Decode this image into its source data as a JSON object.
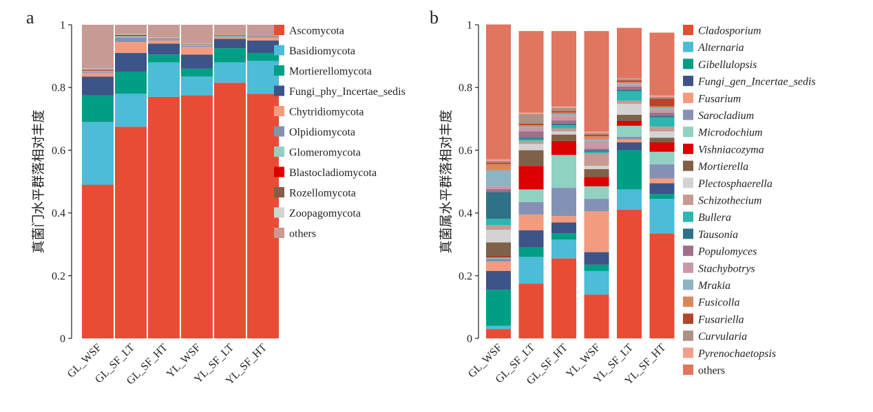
{
  "chart_data": [
    {
      "panel_label": "a",
      "type": "bar",
      "stacked": true,
      "ylabel": "真菌门水平群落相对丰度",
      "xlabel": "",
      "ylim": [
        0,
        1
      ],
      "yticks": [
        "0",
        "0.2",
        "0.4",
        "0.6",
        "0.8",
        "1"
      ],
      "categories": [
        "GL_WSF",
        "GL_SF_LT",
        "GL_SF_HT",
        "YL_WSF",
        "YL_SF_LT",
        "YL_SF_HT"
      ],
      "legend_italic": false,
      "series": [
        {
          "name": "Ascomycota",
          "color": "#e84c35",
          "values": [
            0.49,
            0.675,
            0.77,
            0.775,
            0.815,
            0.78
          ]
        },
        {
          "name": "Basidiomycota",
          "color": "#4cbcd8",
          "values": [
            0.2,
            0.105,
            0.11,
            0.06,
            0.065,
            0.105
          ]
        },
        {
          "name": "Mortierellomycota",
          "color": "#009e84",
          "values": [
            0.085,
            0.07,
            0.025,
            0.025,
            0.045,
            0.025
          ]
        },
        {
          "name": "Fungi_phy_Incertae_sedis",
          "color": "#3c5488",
          "values": [
            0.06,
            0.06,
            0.035,
            0.045,
            0.03,
            0.04
          ]
        },
        {
          "name": "Chytridiomycota",
          "color": "#f39b7f",
          "values": [
            0.012,
            0.035,
            0.01,
            0.025,
            0.005,
            0.008
          ]
        },
        {
          "name": "Olpidiomycota",
          "color": "#8491b4",
          "values": [
            0.004,
            0.015,
            0.004,
            0.004,
            0.003,
            0.003
          ]
        },
        {
          "name": "Glomeromycota",
          "color": "#91d1c2",
          "values": [
            0.003,
            0.004,
            0.002,
            0.003,
            0.002,
            0.002
          ]
        },
        {
          "name": "Blastocladiomycota",
          "color": "#dc0000",
          "values": [
            0.002,
            0.002,
            0.001,
            0.001,
            0.001,
            0.001
          ]
        },
        {
          "name": "Rozellomycota",
          "color": "#7e6148",
          "values": [
            0.002,
            0.002,
            0.001,
            0.001,
            0.001,
            0.001
          ]
        },
        {
          "name": "Zoopagomycota",
          "color": "#d3d3d3",
          "values": [
            0.002,
            0.002,
            0.002,
            0.001,
            0.001,
            0.001
          ]
        },
        {
          "name": "others",
          "color": "#c79a94",
          "values": [
            0.14,
            0.03,
            0.04,
            0.06,
            0.032,
            0.034
          ]
        }
      ]
    },
    {
      "panel_label": "b",
      "type": "bar",
      "stacked": true,
      "ylabel": "真菌属水平群落相对丰度",
      "xlabel": "",
      "ylim": [
        0,
        1
      ],
      "yticks": [
        "0",
        "0.2",
        "0.4",
        "0.6",
        "0.8",
        "1"
      ],
      "categories": [
        "GL_WSF",
        "GL_SF_LT",
        "GL_SF_HT",
        "YL_WSF",
        "YL_SF_LT",
        "YL_SF_HT"
      ],
      "legend_italic": true,
      "series": [
        {
          "name": "Cladosporium",
          "color": "#e84c35",
          "values": [
            0.03,
            0.175,
            0.255,
            0.14,
            0.41,
            0.335
          ]
        },
        {
          "name": "Alternaria",
          "color": "#4cbcd8",
          "values": [
            0.01,
            0.085,
            0.06,
            0.075,
            0.065,
            0.11
          ]
        },
        {
          "name": "Gibellulopsis",
          "color": "#009e84",
          "values": [
            0.115,
            0.03,
            0.02,
            0.02,
            0.125,
            0.015
          ]
        },
        {
          "name": "Fungi_gen_Incertae_sedis",
          "color": "#3c5488",
          "values": [
            0.06,
            0.055,
            0.035,
            0.04,
            0.025,
            0.035
          ]
        },
        {
          "name": "Fusarium",
          "color": "#f39b7f",
          "values": [
            0.03,
            0.05,
            0.02,
            0.13,
            0.01,
            0.015
          ]
        },
        {
          "name": "Sarocladium",
          "color": "#8491b4",
          "values": [
            0.01,
            0.04,
            0.09,
            0.04,
            0.008,
            0.045
          ]
        },
        {
          "name": "Microdochium",
          "color": "#91d1c2",
          "values": [
            0.003,
            0.04,
            0.105,
            0.04,
            0.035,
            0.04
          ]
        },
        {
          "name": "Vishniacozyma",
          "color": "#dc0000",
          "values": [
            0.003,
            0.075,
            0.045,
            0.03,
            0.015,
            0.03
          ]
        },
        {
          "name": "Mortierella",
          "color": "#7e6148",
          "values": [
            0.045,
            0.05,
            0.02,
            0.025,
            0.02,
            0.015
          ]
        },
        {
          "name": "Plectosphaerella",
          "color": "#d3d3d3",
          "values": [
            0.04,
            0.02,
            0.01,
            0.01,
            0.035,
            0.02
          ]
        },
        {
          "name": "Schizothecium",
          "color": "#c79a94",
          "values": [
            0.015,
            0.01,
            0.01,
            0.04,
            0.01,
            0.015
          ]
        },
        {
          "name": "Bullera",
          "color": "#2eb6b0",
          "values": [
            0.02,
            0.005,
            0.01,
            0.005,
            0.03,
            0.03
          ]
        },
        {
          "name": "Tausonia",
          "color": "#2e7287",
          "values": [
            0.085,
            0.005,
            0.005,
            0.005,
            0.005,
            0.005
          ]
        },
        {
          "name": "Populomyces",
          "color": "#a07089",
          "values": [
            0.01,
            0.02,
            0.01,
            0.005,
            0.01,
            0.01
          ]
        },
        {
          "name": "Stachybotrys",
          "color": "#c998a8",
          "values": [
            0.01,
            0.01,
            0.015,
            0.025,
            0.005,
            0.01
          ]
        },
        {
          "name": "Mrakia",
          "color": "#8db4c3",
          "values": [
            0.05,
            0.005,
            0.005,
            0.005,
            0.005,
            0.005
          ]
        },
        {
          "name": "Fusicolla",
          "color": "#d8875a",
          "values": [
            0.02,
            0.005,
            0.005,
            0.01,
            0.005,
            0.005
          ]
        },
        {
          "name": "Fusariella",
          "color": "#b5442a",
          "values": [
            0.005,
            0.005,
            0.005,
            0.005,
            0.005,
            0.025
          ]
        },
        {
          "name": "Curvularia",
          "color": "#ab9186",
          "values": [
            0.005,
            0.03,
            0.01,
            0.005,
            0.005,
            0.005
          ]
        },
        {
          "name": "Pyrenochaetopsis",
          "color": "#f0a08a",
          "values": [
            0.005,
            0.005,
            0.005,
            0.005,
            0.002,
            0.005
          ]
        },
        {
          "name": "others",
          "color": "#e07560",
          "values": [
            0.43,
            0.26,
            0.24,
            0.32,
            0.16,
            0.2
          ]
        }
      ]
    }
  ]
}
